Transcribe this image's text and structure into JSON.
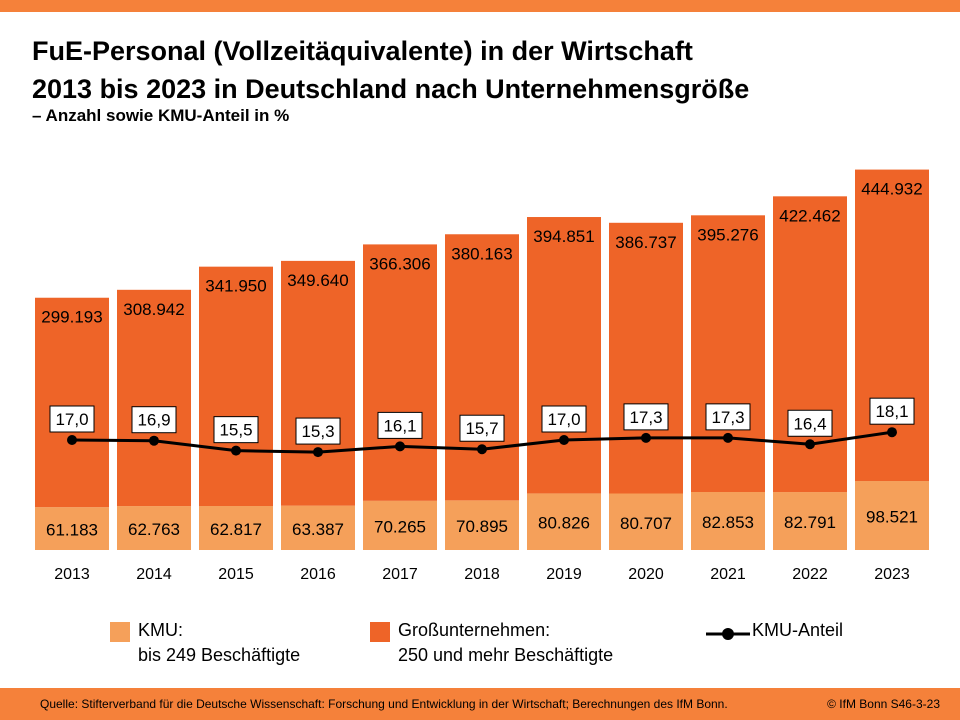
{
  "header": {
    "title_line1": "FuE-Personal (Vollzeitäquivalente) in der Wirtschaft",
    "title_line2": "2013 bis 2023 in Deutschland nach Unternehmensgröße",
    "subtitle": "– Anzahl sowie KMU-Anteil in %"
  },
  "chart_data": {
    "type": "bar",
    "stacked": true,
    "categories": [
      "2013",
      "2014",
      "2015",
      "2016",
      "2017",
      "2018",
      "2019",
      "2020",
      "2021",
      "2022",
      "2023"
    ],
    "series": [
      {
        "name": "KMU: bis 249 Beschäftigte",
        "color": "#F5A05A",
        "values": [
          61183,
          62763,
          62817,
          63387,
          70265,
          70895,
          80826,
          80707,
          82853,
          82791,
          98521
        ],
        "labels": [
          "61.183",
          "62.763",
          "62.817",
          "63.387",
          "70.265",
          "70.895",
          "80.826",
          "80.707",
          "82.853",
          "82.791",
          "98.521"
        ]
      },
      {
        "name": "Großunternehmen: 250 und mehr Beschäftigte",
        "color": "#EE6428",
        "values": [
          299193,
          308942,
          341950,
          349640,
          366306,
          380163,
          394851,
          386737,
          395276,
          422462,
          444932
        ],
        "labels": [
          "299.193",
          "308.942",
          "341.950",
          "349.640",
          "366.306",
          "380.163",
          "394.851",
          "386.737",
          "395.276",
          "422.462",
          "444.932"
        ]
      },
      {
        "name": "KMU-Anteil",
        "type": "line",
        "color": "#000000",
        "values": [
          17.0,
          16.9,
          15.5,
          15.3,
          16.1,
          15.7,
          17.0,
          17.3,
          17.3,
          16.4,
          18.1
        ],
        "labels": [
          "17,0",
          "16,9",
          "15,5",
          "15,3",
          "16,1",
          "15,7",
          "17,0",
          "17,3",
          "17,3",
          "16,4",
          "18,1"
        ]
      }
    ]
  },
  "legend": {
    "kmu_line1": "KMU:",
    "kmu_line2": "bis 249 Beschäftigte",
    "gu_line1": "Großunternehmen:",
    "gu_line2": "250 und mehr Beschäftigte",
    "share": "KMU-Anteil"
  },
  "footer": {
    "source": "Quelle: Stifterverband für die Deutsche Wissenschaft: Forschung und Entwicklung in der Wirtschaft; Berechnungen des IfM Bonn.",
    "copyright": "© IfM Bonn  S46-3-23"
  }
}
